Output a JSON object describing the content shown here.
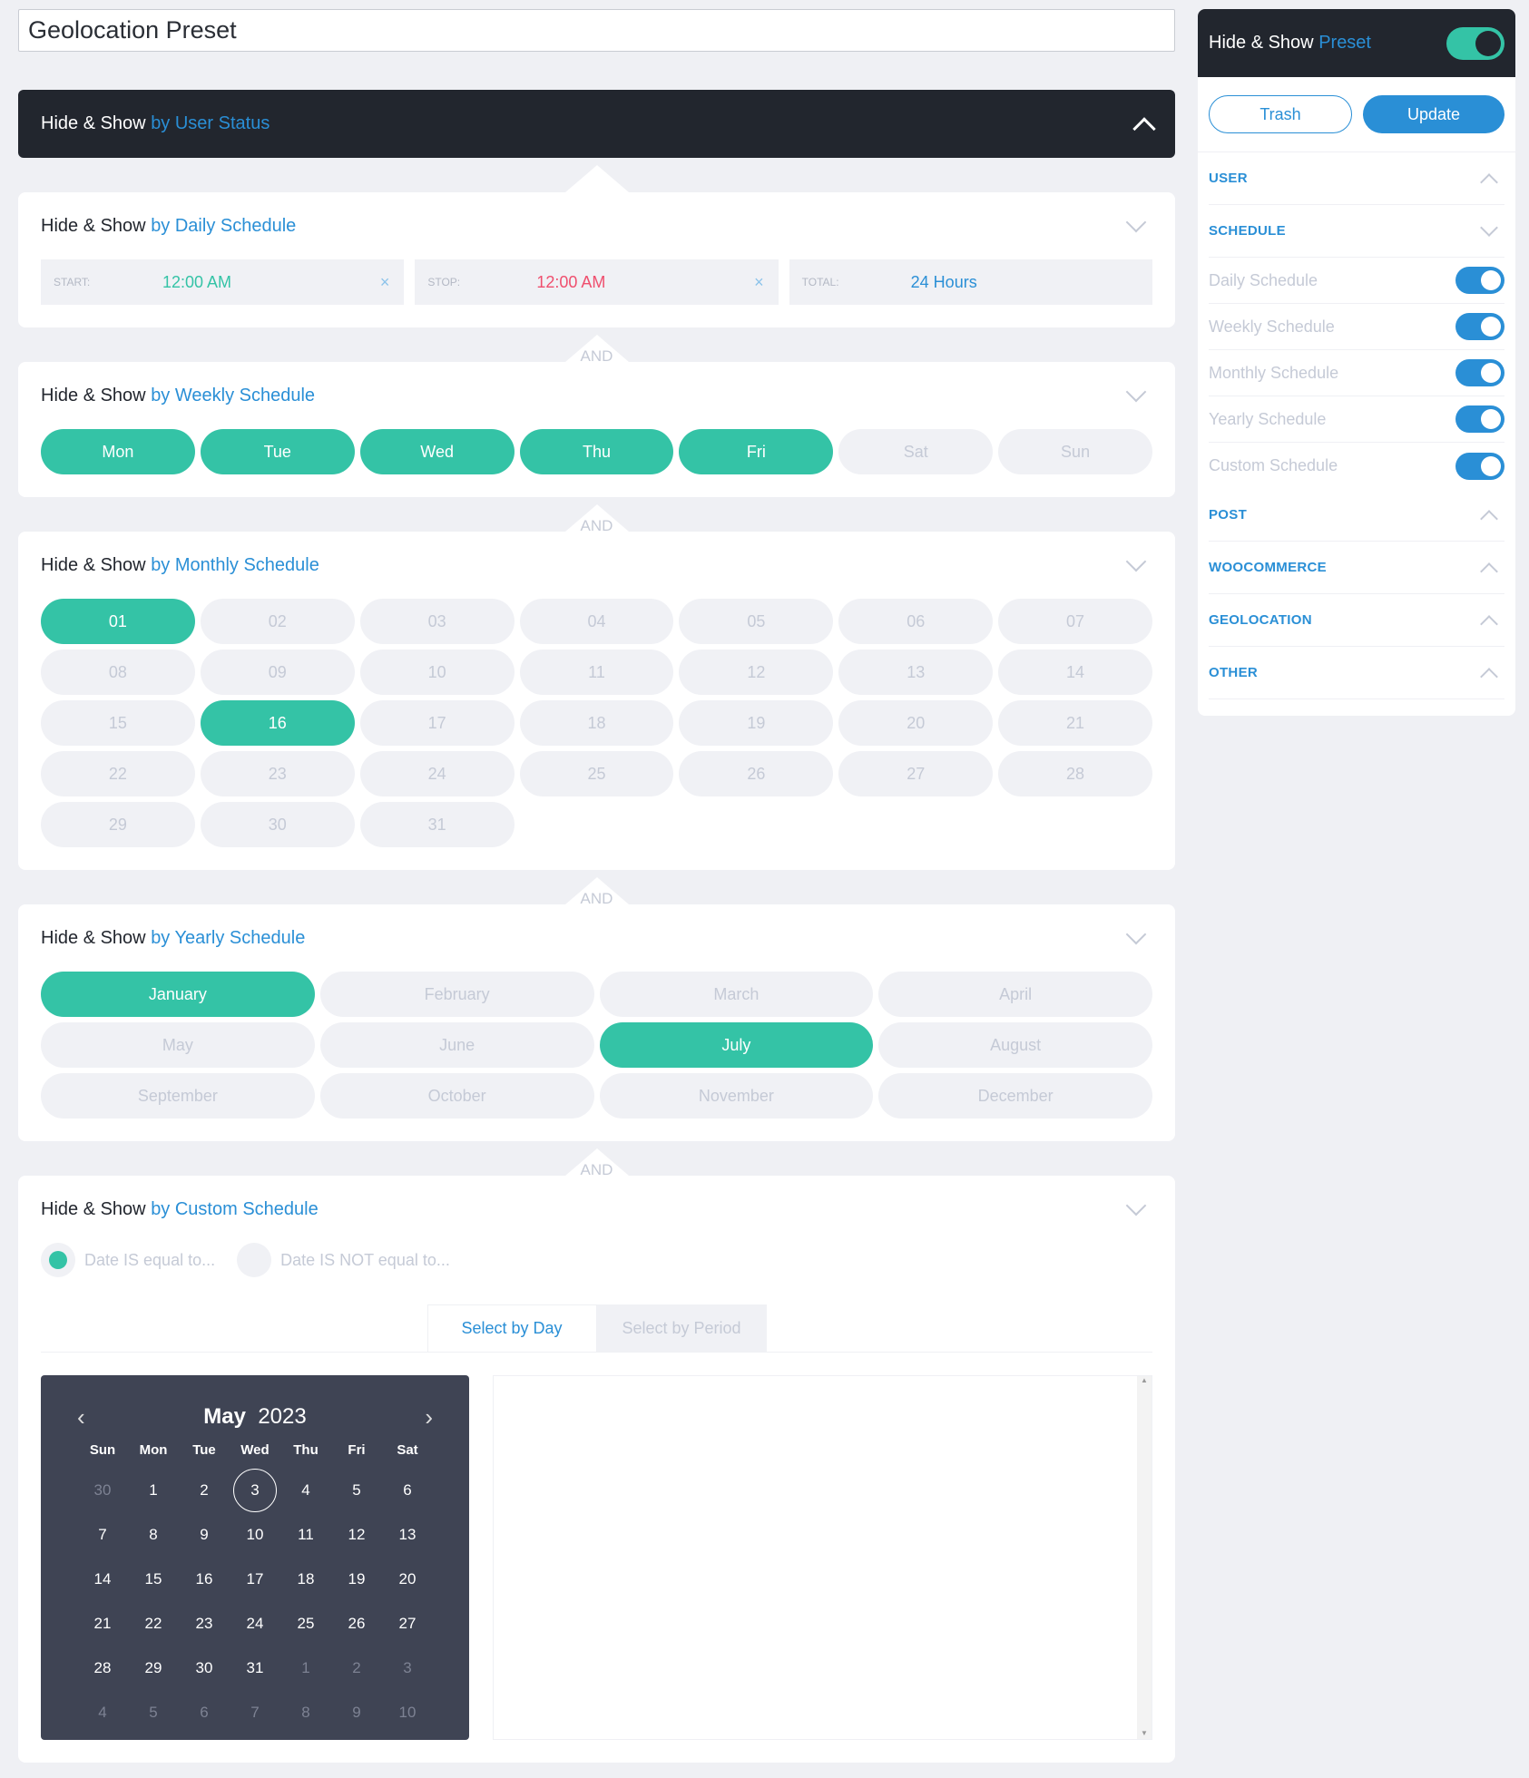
{
  "title": "Geolocation Preset",
  "prefix": "Hide & Show",
  "user_status": {
    "accent": "by User Status"
  },
  "daily": {
    "accent": "by Daily Schedule",
    "start_label": "START:",
    "start": "12:00 AM",
    "stop_label": "STOP:",
    "stop": "12:00 AM",
    "total_label": "TOTAL:",
    "total": "24 Hours",
    "clear": "×"
  },
  "and": "AND",
  "weekly": {
    "accent": "by Weekly Schedule",
    "days": [
      {
        "l": "Mon",
        "on": true
      },
      {
        "l": "Tue",
        "on": true
      },
      {
        "l": "Wed",
        "on": true
      },
      {
        "l": "Thu",
        "on": true
      },
      {
        "l": "Fri",
        "on": true
      },
      {
        "l": "Sat",
        "on": false
      },
      {
        "l": "Sun",
        "on": false
      }
    ]
  },
  "monthly": {
    "accent": "by Monthly Schedule",
    "selected": [
      "01",
      "16"
    ],
    "days": [
      "01",
      "02",
      "03",
      "04",
      "05",
      "06",
      "07",
      "08",
      "09",
      "10",
      "11",
      "12",
      "13",
      "14",
      "15",
      "16",
      "17",
      "18",
      "19",
      "20",
      "21",
      "22",
      "23",
      "24",
      "25",
      "26",
      "27",
      "28",
      "29",
      "30",
      "31"
    ]
  },
  "yearly": {
    "accent": "by Yearly Schedule",
    "selected": [
      "January",
      "July"
    ],
    "months": [
      "January",
      "February",
      "March",
      "April",
      "May",
      "June",
      "July",
      "August",
      "September",
      "October",
      "November",
      "December"
    ]
  },
  "custom": {
    "accent": "by Custom Schedule",
    "radio_equal": "Date IS equal to...",
    "radio_not_equal": "Date IS NOT equal to...",
    "selected_radio": "equal",
    "tab_day": "Select by Day",
    "tab_period": "Select by Period",
    "calendar": {
      "month": "May",
      "year": "2023",
      "dow": [
        "Sun",
        "Mon",
        "Tue",
        "Wed",
        "Thu",
        "Fri",
        "Sat"
      ],
      "today": "3",
      "weeks": [
        [
          "30",
          "1",
          "2",
          "3",
          "4",
          "5",
          "6"
        ],
        [
          "7",
          "8",
          "9",
          "10",
          "11",
          "12",
          "13"
        ],
        [
          "14",
          "15",
          "16",
          "17",
          "18",
          "19",
          "20"
        ],
        [
          "21",
          "22",
          "23",
          "24",
          "25",
          "26",
          "27"
        ],
        [
          "28",
          "29",
          "30",
          "31",
          "1",
          "2",
          "3"
        ],
        [
          "4",
          "5",
          "6",
          "7",
          "8",
          "9",
          "10"
        ]
      ]
    }
  },
  "sidebar": {
    "title_accent": "Preset",
    "preset_enabled": true,
    "trash": "Trash",
    "update": "Update",
    "sections": {
      "user": "USER",
      "schedule": "SCHEDULE",
      "post": "POST",
      "woocommerce": "WOOCOMMERCE",
      "geolocation": "GEOLOCATION",
      "other": "OTHER"
    },
    "schedule_items": [
      {
        "label": "Daily Schedule",
        "on": true
      },
      {
        "label": "Weekly Schedule",
        "on": true
      },
      {
        "label": "Monthly Schedule",
        "on": true
      },
      {
        "label": "Yearly Schedule",
        "on": true
      },
      {
        "label": "Custom Schedule",
        "on": true
      }
    ]
  },
  "colors": {
    "accent": "#2a8fd6",
    "selected": "#34c3a6",
    "dark": "#22262e",
    "stop": "#ef4f6e"
  }
}
